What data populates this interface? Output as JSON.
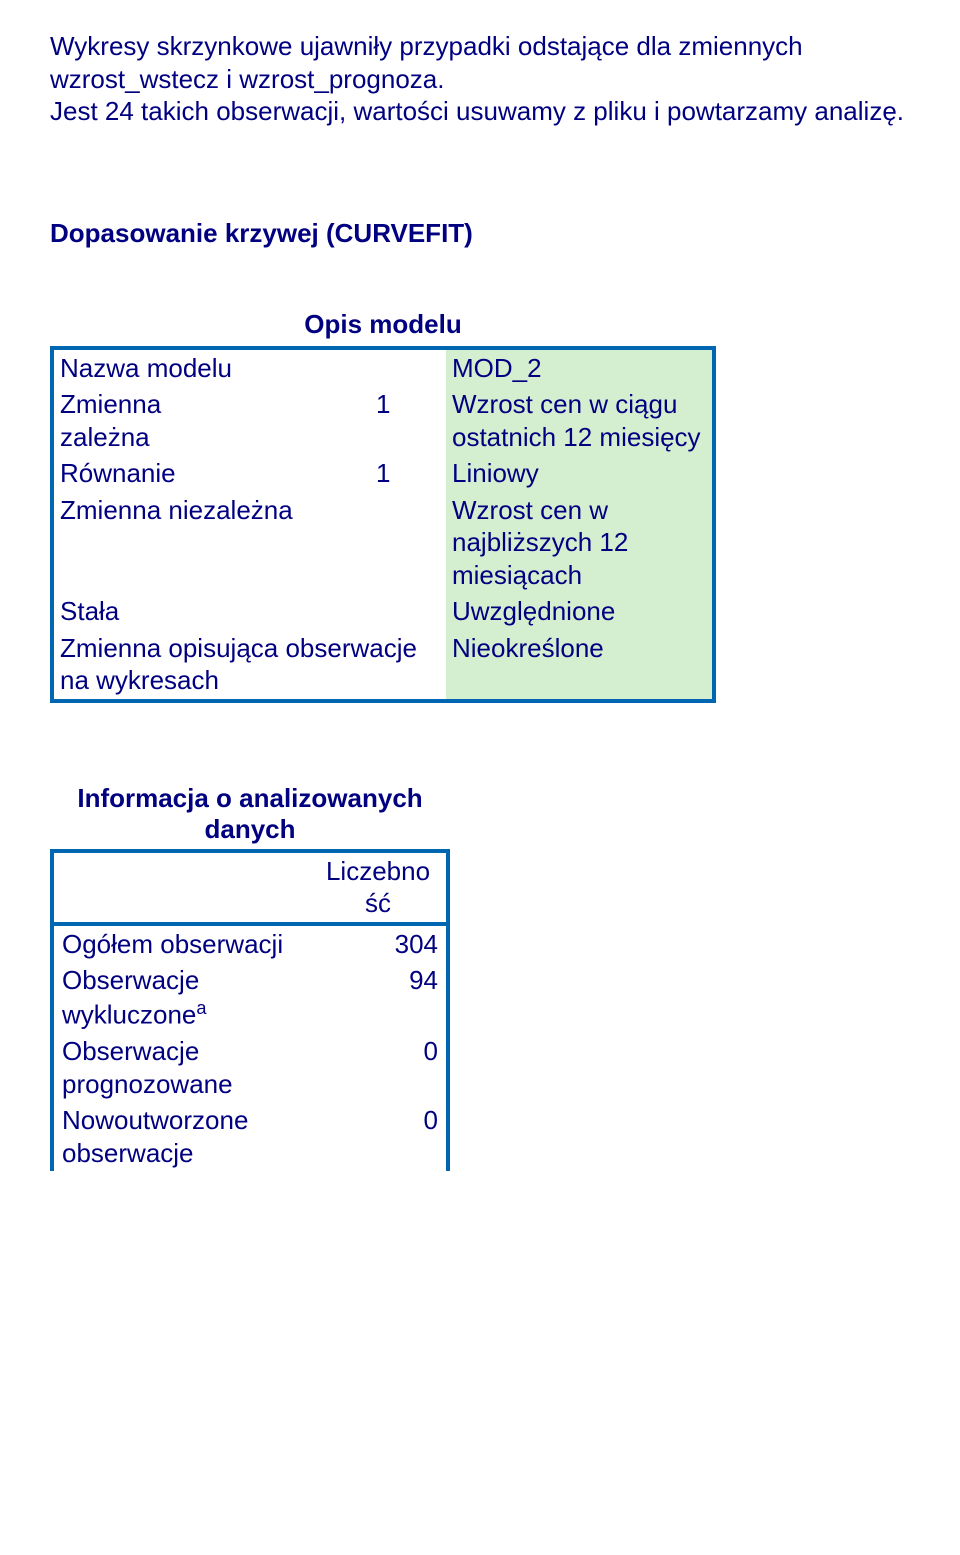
{
  "intro": {
    "line1": "Wykresy skrzynkowe ujawniły przypadki odstające dla zmiennych wzrost_wstecz i wzrost_prognoza.",
    "line2": "Jest 24 takich obserwacji, wartości usuwamy z pliku i powtarzamy analizę."
  },
  "section_heading": "Dopasowanie krzywej (CURVEFIT)",
  "model_desc": {
    "caption": "Opis modelu",
    "rows": [
      {
        "label": "Nazwa modelu",
        "sub": "",
        "value": "MOD_2"
      },
      {
        "label": "Zmienna zależna",
        "sub": "1",
        "value": "Wzrost cen w ciągu ostatnich 12 miesięcy"
      },
      {
        "label": "Równanie",
        "sub": "1",
        "value": "Liniowy"
      },
      {
        "label": "Zmienna niezależna",
        "sub": "",
        "value": "Wzrost cen w najbliższych 12 miesiącach"
      },
      {
        "label": "Stała",
        "sub": "",
        "value": "Uwzględnione"
      },
      {
        "label": "Zmienna opisująca obserwacje na wykresach",
        "sub": "",
        "value": "Nieokreślone"
      }
    ]
  },
  "info": {
    "title": "Informacja o analizowanych danych",
    "col_header": "Liczebność",
    "rows": [
      {
        "label": "Ogółem obserwacji",
        "value": "304"
      },
      {
        "label_html": "Obserwacje wykluczone",
        "sup": "a",
        "value": "94"
      },
      {
        "label": "Obserwacje prognozowane",
        "value": "0"
      },
      {
        "label": "Nowoutworzone obserwacje",
        "value": "0"
      }
    ]
  },
  "colors": {
    "text": "#000080",
    "border": "#0066b2",
    "cell_bg": "#d4efd0",
    "page_bg": "#ffffff"
  }
}
